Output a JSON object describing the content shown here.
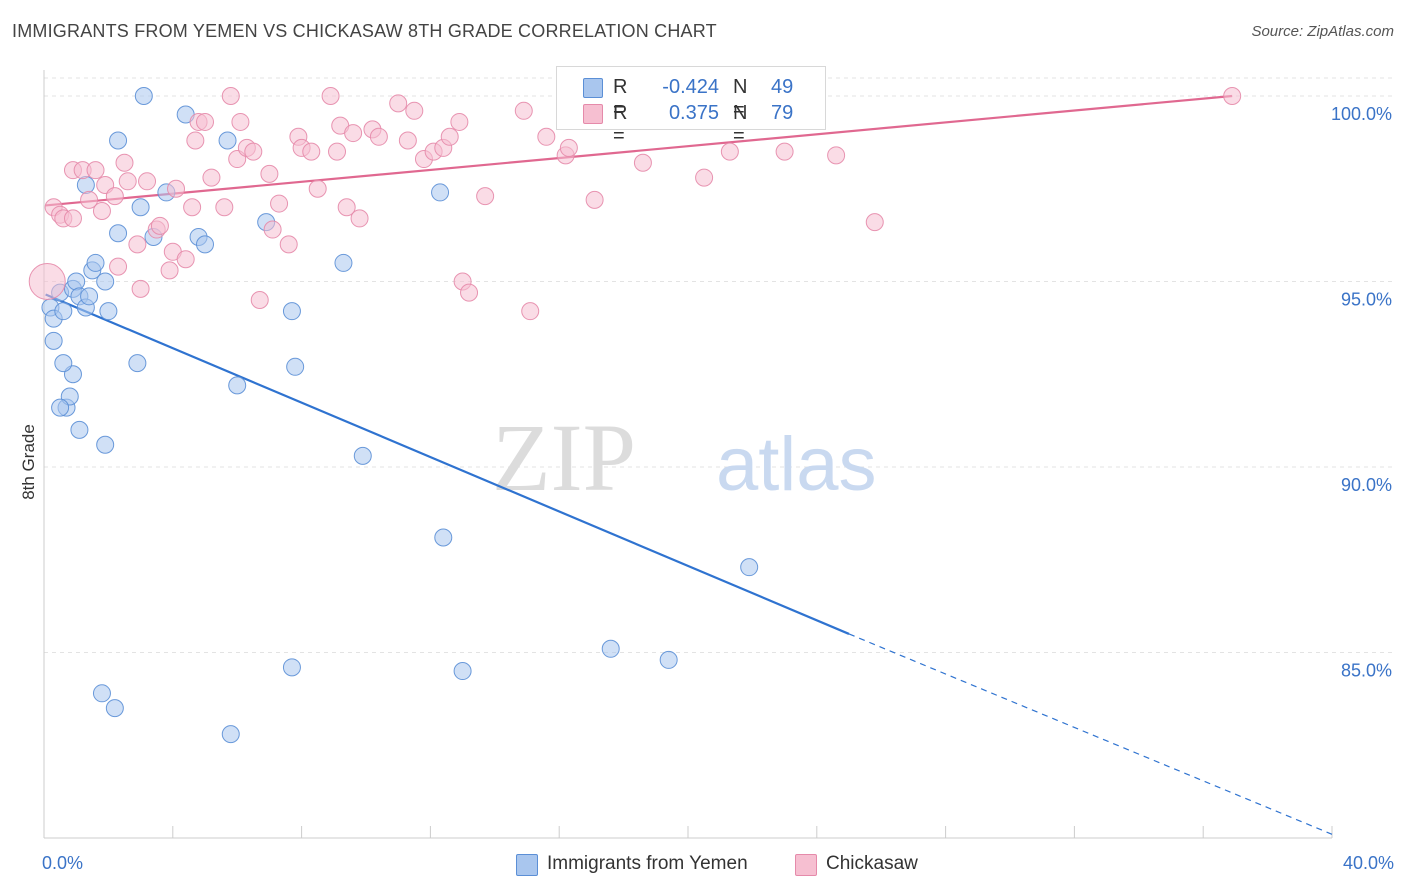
{
  "title": "IMMIGRANTS FROM YEMEN VS CHICKASAW 8TH GRADE CORRELATION CHART",
  "source": "Source: ZipAtlas.com",
  "watermark": {
    "zip": "ZIP",
    "atlas": "atlas"
  },
  "colors": {
    "blue_fill": "#a9c6ee",
    "blue_stroke": "#5b8fd6",
    "blue_line": "#2f73d0",
    "pink_fill": "#f6bfd1",
    "pink_stroke": "#e58aaa",
    "pink_line": "#e06890",
    "axis_text": "#3a73c7",
    "grid": "#e3e3e3"
  },
  "legend": {
    "r_label": "R =",
    "n_label": "N =",
    "series": [
      {
        "name": "Immigrants from Yemen",
        "r": "-0.424",
        "n": "49"
      },
      {
        "name": "Chickasaw",
        "r": "0.375",
        "n": "79"
      }
    ]
  },
  "chart_data": {
    "type": "scatter",
    "ylabel": "8th Grade",
    "xlabel": "",
    "xlim": [
      0,
      40
    ],
    "ylim": [
      80.0,
      100.7
    ],
    "x_tick_labels": [
      "0.0%",
      "40.0%"
    ],
    "y_ticks": [
      {
        "value": 85,
        "label": "85.0%"
      },
      {
        "value": 90,
        "label": "90.0%"
      },
      {
        "value": 95,
        "label": "95.0%"
      },
      {
        "value": 100,
        "label": "100.0%"
      }
    ],
    "x_minor_ticks": [
      0,
      4,
      8,
      12,
      16,
      20,
      24,
      28,
      32,
      36,
      40
    ],
    "grid": true,
    "legend_position": "top-center",
    "series": [
      {
        "name": "Immigrants from Yemen",
        "color": "blue",
        "trend": {
          "x0": 0.05,
          "y0": 94.65,
          "x1": 25.0,
          "y1": 85.5,
          "dashed_to_x": 40.0,
          "dashed_to_y": 80.1
        },
        "points": [
          [
            0.2,
            94.3
          ],
          [
            0.3,
            94.0
          ],
          [
            0.3,
            93.4
          ],
          [
            0.5,
            94.7
          ],
          [
            0.6,
            94.2
          ],
          [
            0.9,
            94.8
          ],
          [
            0.7,
            91.6
          ],
          [
            0.8,
            91.9
          ],
          [
            0.9,
            92.5
          ],
          [
            1.1,
            91.0
          ],
          [
            0.6,
            92.8
          ],
          [
            0.5,
            91.6
          ],
          [
            1.0,
            95.0
          ],
          [
            1.1,
            94.6
          ],
          [
            1.3,
            94.3
          ],
          [
            1.4,
            94.6
          ],
          [
            1.5,
            95.3
          ],
          [
            1.6,
            95.5
          ],
          [
            1.9,
            95.0
          ],
          [
            2.0,
            94.2
          ],
          [
            1.9,
            90.6
          ],
          [
            1.3,
            97.6
          ],
          [
            1.8,
            83.9
          ],
          [
            2.2,
            83.5
          ],
          [
            2.3,
            96.3
          ],
          [
            2.3,
            98.8
          ],
          [
            3.0,
            97.0
          ],
          [
            3.1,
            100.0
          ],
          [
            2.9,
            92.8
          ],
          [
            3.4,
            96.2
          ],
          [
            3.8,
            97.4
          ],
          [
            4.4,
            99.5
          ],
          [
            4.8,
            96.2
          ],
          [
            5.0,
            96.0
          ],
          [
            5.7,
            98.8
          ],
          [
            6.0,
            92.2
          ],
          [
            5.8,
            82.8
          ],
          [
            6.9,
            96.6
          ],
          [
            7.7,
            94.2
          ],
          [
            7.8,
            92.7
          ],
          [
            7.7,
            84.6
          ],
          [
            9.3,
            95.5
          ],
          [
            9.9,
            90.3
          ],
          [
            12.3,
            97.4
          ],
          [
            12.4,
            88.1
          ],
          [
            13.0,
            84.5
          ],
          [
            17.6,
            85.1
          ],
          [
            19.4,
            84.8
          ],
          [
            21.9,
            87.3
          ]
        ]
      },
      {
        "name": "Chickasaw",
        "color": "pink",
        "trend": {
          "x0": 0.05,
          "y0": 97.05,
          "x1": 36.9,
          "y1": 100.0
        },
        "points": [
          [
            0.1,
            95.0
          ],
          [
            0.3,
            97.0
          ],
          [
            0.5,
            96.8
          ],
          [
            0.6,
            96.7
          ],
          [
            0.9,
            96.7
          ],
          [
            0.9,
            98.0
          ],
          [
            1.2,
            98.0
          ],
          [
            1.4,
            97.2
          ],
          [
            1.6,
            98.0
          ],
          [
            1.8,
            96.9
          ],
          [
            1.9,
            97.6
          ],
          [
            2.2,
            97.3
          ],
          [
            2.3,
            95.4
          ],
          [
            2.5,
            98.2
          ],
          [
            2.6,
            97.7
          ],
          [
            2.9,
            96.0
          ],
          [
            3.0,
            94.8
          ],
          [
            3.2,
            97.7
          ],
          [
            3.5,
            96.4
          ],
          [
            3.6,
            96.5
          ],
          [
            3.9,
            95.3
          ],
          [
            4.0,
            95.8
          ],
          [
            4.1,
            97.5
          ],
          [
            4.4,
            95.6
          ],
          [
            4.6,
            97.0
          ],
          [
            4.7,
            98.8
          ],
          [
            4.8,
            99.3
          ],
          [
            5.0,
            99.3
          ],
          [
            5.2,
            97.8
          ],
          [
            5.6,
            97.0
          ],
          [
            5.8,
            100.0
          ],
          [
            6.0,
            98.3
          ],
          [
            6.1,
            99.3
          ],
          [
            6.3,
            98.6
          ],
          [
            6.5,
            98.5
          ],
          [
            6.7,
            94.5
          ],
          [
            7.0,
            97.9
          ],
          [
            7.1,
            96.4
          ],
          [
            7.3,
            97.1
          ],
          [
            7.6,
            96.0
          ],
          [
            7.9,
            98.9
          ],
          [
            8.0,
            98.6
          ],
          [
            8.3,
            98.5
          ],
          [
            8.5,
            97.5
          ],
          [
            8.9,
            100.0
          ],
          [
            9.1,
            98.5
          ],
          [
            9.2,
            99.2
          ],
          [
            9.4,
            97.0
          ],
          [
            9.6,
            99.0
          ],
          [
            9.8,
            96.7
          ],
          [
            10.2,
            99.1
          ],
          [
            10.4,
            98.9
          ],
          [
            11.0,
            99.8
          ],
          [
            11.3,
            98.8
          ],
          [
            11.5,
            99.6
          ],
          [
            11.8,
            98.3
          ],
          [
            12.1,
            98.5
          ],
          [
            12.4,
            98.6
          ],
          [
            12.6,
            98.9
          ],
          [
            12.9,
            99.3
          ],
          [
            13.0,
            95.0
          ],
          [
            13.2,
            94.7
          ],
          [
            13.7,
            97.3
          ],
          [
            14.9,
            99.6
          ],
          [
            15.1,
            94.2
          ],
          [
            15.6,
            98.9
          ],
          [
            16.2,
            98.4
          ],
          [
            16.3,
            98.6
          ],
          [
            16.8,
            100.0
          ],
          [
            17.1,
            97.2
          ],
          [
            18.5,
            100.0
          ],
          [
            18.6,
            98.2
          ],
          [
            19.9,
            100.0
          ],
          [
            20.5,
            97.8
          ],
          [
            21.3,
            98.5
          ],
          [
            23.0,
            98.5
          ],
          [
            24.6,
            98.4
          ],
          [
            25.8,
            96.6
          ],
          [
            36.9,
            100.0
          ]
        ]
      }
    ]
  }
}
